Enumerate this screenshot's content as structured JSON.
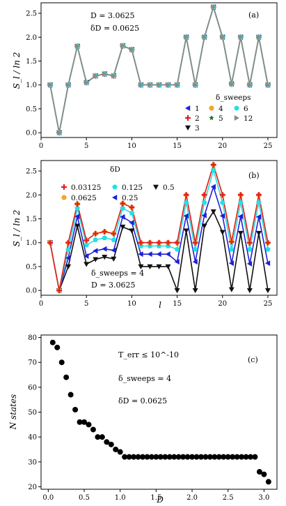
{
  "chart_data": [
    {
      "type": "line",
      "panel_label": "(a)",
      "ylabel": "S_l / ln 2",
      "xlabel": "",
      "xlim": [
        0,
        26
      ],
      "ylim": [
        -0.1,
        2.72
      ],
      "xticks": [
        0,
        5,
        10,
        15,
        20,
        25
      ],
      "yticks": [
        0.0,
        0.5,
        1.0,
        1.5,
        2.0,
        2.5
      ],
      "annotations": [
        "D = 3.0625",
        "δD = 0.0625"
      ],
      "legend_title": "δ_sweeps",
      "legend_placement": "lower-right",
      "x": [
        1,
        2,
        3,
        4,
        5,
        6,
        7,
        8,
        9,
        10,
        11,
        12,
        13,
        14,
        15,
        16,
        17,
        18,
        19,
        20,
        21,
        22,
        23,
        24,
        25
      ],
      "series": [
        {
          "name": "1",
          "marker": "triangle-left",
          "color": "#1f1fd6",
          "values": [
            1.0,
            0.0,
            1.0,
            1.81,
            1.05,
            1.19,
            1.23,
            1.19,
            1.82,
            1.74,
            1.0,
            1.0,
            1.0,
            1.0,
            1.0,
            2.0,
            1.0,
            2.0,
            2.63,
            2.0,
            1.02,
            2.0,
            1.0,
            2.0,
            1.0
          ]
        },
        {
          "name": "2",
          "marker": "plus",
          "color": "#e01e1e",
          "values": [
            1.0,
            0.0,
            1.0,
            1.81,
            1.05,
            1.19,
            1.23,
            1.19,
            1.82,
            1.74,
            1.0,
            1.0,
            1.0,
            1.0,
            1.0,
            2.0,
            1.0,
            2.0,
            2.63,
            2.0,
            1.02,
            2.0,
            1.0,
            2.0,
            1.0
          ]
        },
        {
          "name": "3",
          "marker": "triangle-down",
          "color": "#111111",
          "values": [
            1.0,
            0.0,
            1.0,
            1.81,
            1.05,
            1.19,
            1.23,
            1.19,
            1.82,
            1.74,
            1.0,
            1.0,
            1.0,
            1.0,
            1.0,
            2.0,
            1.0,
            2.0,
            2.63,
            2.0,
            1.02,
            2.0,
            1.0,
            2.0,
            1.0
          ]
        },
        {
          "name": "4",
          "marker": "circle",
          "color": "#f5a623",
          "values": [
            1.0,
            0.0,
            1.0,
            1.81,
            1.05,
            1.19,
            1.23,
            1.19,
            1.82,
            1.74,
            1.0,
            1.0,
            1.0,
            1.0,
            1.0,
            2.0,
            1.0,
            2.0,
            2.63,
            2.0,
            1.02,
            2.0,
            1.0,
            2.0,
            1.0
          ]
        },
        {
          "name": "5",
          "marker": "star",
          "color": "#1a7a1a",
          "values": [
            1.0,
            0.0,
            1.0,
            1.81,
            1.05,
            1.19,
            1.23,
            1.19,
            1.82,
            1.74,
            1.0,
            1.0,
            1.0,
            1.0,
            1.0,
            2.0,
            1.0,
            2.0,
            2.63,
            2.0,
            1.02,
            2.0,
            1.0,
            2.0,
            1.0
          ]
        },
        {
          "name": "6",
          "marker": "pentagon",
          "color": "#22e0e8",
          "values": [
            1.0,
            0.0,
            1.0,
            1.81,
            1.05,
            1.19,
            1.23,
            1.19,
            1.82,
            1.74,
            1.0,
            1.0,
            1.0,
            1.0,
            1.0,
            2.0,
            1.0,
            2.0,
            2.63,
            2.0,
            1.02,
            2.0,
            1.0,
            2.0,
            1.0
          ]
        },
        {
          "name": "12",
          "marker": "triangle-right",
          "color": "#8a8a8a",
          "values": [
            1.0,
            0.0,
            1.0,
            1.81,
            1.05,
            1.19,
            1.23,
            1.19,
            1.82,
            1.74,
            1.0,
            1.0,
            1.0,
            1.0,
            1.0,
            2.0,
            1.0,
            2.0,
            2.63,
            2.0,
            1.02,
            2.0,
            1.0,
            2.0,
            1.0
          ]
        }
      ]
    },
    {
      "type": "line",
      "panel_label": "(b)",
      "ylabel": "S_l / ln 2",
      "xlabel": "l",
      "xlim": [
        0,
        26
      ],
      "ylim": [
        -0.1,
        2.72
      ],
      "xticks": [
        0,
        5,
        10,
        15,
        20,
        25
      ],
      "yticks": [
        0.0,
        0.5,
        1.0,
        1.5,
        2.0,
        2.5
      ],
      "annotations": [
        "δ_sweeps = 4",
        "D = 3.0625"
      ],
      "legend_title": "δD",
      "legend_placement": "top-left",
      "x": [
        1,
        2,
        3,
        4,
        5,
        6,
        7,
        8,
        9,
        10,
        11,
        12,
        13,
        14,
        15,
        16,
        17,
        18,
        19,
        20,
        21,
        22,
        23,
        24,
        25
      ],
      "series": [
        {
          "name": "0.03125",
          "marker": "plus",
          "color": "#e01e1e",
          "values": [
            1.0,
            0.0,
            1.0,
            1.81,
            1.05,
            1.19,
            1.23,
            1.19,
            1.82,
            1.74,
            1.0,
            1.0,
            1.0,
            1.0,
            1.0,
            2.0,
            1.0,
            2.0,
            2.63,
            2.0,
            1.02,
            2.0,
            1.0,
            2.0,
            1.0
          ]
        },
        {
          "name": "0.0625",
          "marker": "circle",
          "color": "#f5a623",
          "values": [
            1.0,
            0.0,
            1.0,
            1.81,
            1.05,
            1.19,
            1.23,
            1.19,
            1.82,
            1.74,
            1.0,
            1.0,
            1.0,
            1.0,
            1.0,
            2.0,
            1.0,
            2.0,
            2.63,
            2.0,
            1.02,
            2.0,
            1.0,
            2.0,
            1.0
          ]
        },
        {
          "name": "0.125",
          "marker": "pentagon",
          "color": "#22e0e8",
          "values": [
            1.0,
            0.0,
            0.85,
            1.72,
            0.95,
            1.06,
            1.1,
            1.06,
            1.72,
            1.62,
            0.93,
            0.93,
            0.93,
            0.93,
            0.86,
            1.84,
            0.86,
            1.84,
            2.52,
            1.84,
            0.86,
            1.84,
            0.86,
            1.84,
            0.86
          ]
        },
        {
          "name": "0.25",
          "marker": "triangle-left",
          "color": "#1f1fd6",
          "values": [
            1.0,
            0.0,
            0.68,
            1.55,
            0.72,
            0.83,
            0.87,
            0.84,
            1.54,
            1.42,
            0.76,
            0.76,
            0.76,
            0.76,
            0.6,
            1.56,
            0.6,
            1.57,
            2.17,
            1.56,
            0.57,
            1.55,
            0.56,
            1.54,
            0.57
          ]
        },
        {
          "name": "0.5",
          "marker": "triangle-down",
          "color": "#111111",
          "values": [
            1.0,
            0.0,
            0.5,
            1.35,
            0.55,
            0.65,
            0.7,
            0.66,
            1.33,
            1.25,
            0.5,
            0.5,
            0.5,
            0.5,
            0.0,
            1.25,
            0.0,
            1.35,
            1.65,
            1.22,
            0.02,
            1.2,
            0.0,
            1.2,
            0.0
          ]
        }
      ]
    },
    {
      "type": "scatter",
      "panel_label": "(c)",
      "ylabel": "N states",
      "xlabel": "D",
      "xlim": [
        -0.1,
        3.18
      ],
      "ylim": [
        19,
        81
      ],
      "xticks": [
        0.0,
        0.5,
        1.0,
        1.5,
        2.0,
        2.5,
        3.0
      ],
      "yticks": [
        20,
        30,
        40,
        50,
        60,
        70,
        80
      ],
      "annotations": [
        "T_err ≤ 10^-10",
        "δ_sweeps = 4",
        "δD = 0.0625"
      ],
      "color": "#000000",
      "x": [
        0.0625,
        0.125,
        0.1875,
        0.25,
        0.3125,
        0.375,
        0.4375,
        0.5,
        0.5625,
        0.625,
        0.6875,
        0.75,
        0.8125,
        0.875,
        0.9375,
        1.0,
        1.0625,
        1.125,
        1.1875,
        1.25,
        1.3125,
        1.375,
        1.4375,
        1.5,
        1.5625,
        1.625,
        1.6875,
        1.75,
        1.8125,
        1.875,
        1.9375,
        2.0,
        2.0625,
        2.125,
        2.1875,
        2.25,
        2.3125,
        2.375,
        2.4375,
        2.5,
        2.5625,
        2.625,
        2.6875,
        2.75,
        2.8125,
        2.875,
        2.9375,
        3.0,
        3.0625
      ],
      "values": [
        78,
        76,
        70,
        64,
        57,
        51,
        46,
        46,
        45,
        43,
        40,
        40,
        38,
        37,
        35,
        34,
        32,
        32,
        32,
        32,
        32,
        32,
        32,
        32,
        32,
        32,
        32,
        32,
        32,
        32,
        32,
        32,
        32,
        32,
        32,
        32,
        32,
        32,
        32,
        32,
        32,
        32,
        32,
        32,
        32,
        32,
        26,
        25,
        22
      ]
    }
  ]
}
